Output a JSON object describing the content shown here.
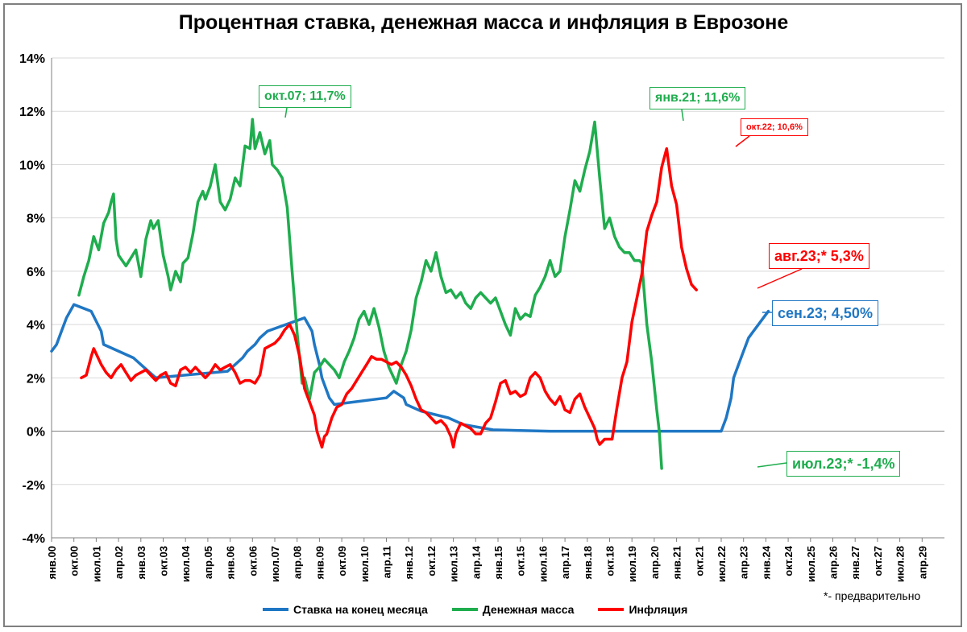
{
  "title": "Процентная ставка, денежная масса и инфляция в Еврозоне",
  "note": "*- предварительно",
  "colors": {
    "rate": "#1f77c4",
    "money": "#1fad4e",
    "inflation": "#ff0000",
    "grid": "#d9d9d9",
    "axis": "#808080"
  },
  "chart_data": {
    "type": "line",
    "ylim": [
      -4,
      14
    ],
    "yticks": [
      -4,
      -2,
      0,
      2,
      4,
      6,
      8,
      10,
      12,
      14
    ],
    "ytick_labels": [
      "-4%",
      "-2%",
      "0%",
      "2%",
      "4%",
      "6%",
      "8%",
      "10%",
      "12%",
      "14%"
    ],
    "x_labels": [
      "янв.00",
      "окт.00",
      "июл.01",
      "апр.02",
      "янв.03",
      "окт.03",
      "июл.04",
      "апр.05",
      "янв.06",
      "окт.06",
      "июл.07",
      "апр.08",
      "янв.09",
      "окт.09",
      "июл.10",
      "апр.11",
      "янв.12",
      "окт.12",
      "июл.13",
      "апр.14",
      "янв.15",
      "окт.15",
      "июл.16",
      "апр.17",
      "янв.18",
      "окт.18",
      "июл.19",
      "апр.20",
      "янв.21",
      "окт.21",
      "июл.22",
      "апр.23",
      "янв.24",
      "окт.24",
      "июл.25",
      "апр.26",
      "янв.27",
      "окт.27",
      "июл.28",
      "апр.29"
    ],
    "x_label_step_months": 9,
    "series": [
      {
        "name": "Ставка на конец месяца",
        "key": "rate",
        "points": [
          [
            0,
            3.0
          ],
          [
            2,
            3.25
          ],
          [
            4,
            3.75
          ],
          [
            6,
            4.25
          ],
          [
            9,
            4.75
          ],
          [
            16,
            4.5
          ],
          [
            20,
            3.75
          ],
          [
            21,
            3.25
          ],
          [
            33,
            2.75
          ],
          [
            36,
            2.5
          ],
          [
            42,
            2.0
          ],
          [
            71,
            2.25
          ],
          [
            74,
            2.5
          ],
          [
            77,
            2.75
          ],
          [
            79,
            3.0
          ],
          [
            82,
            3.25
          ],
          [
            84,
            3.5
          ],
          [
            87,
            3.75
          ],
          [
            102,
            4.25
          ],
          [
            105,
            3.75
          ],
          [
            106,
            3.25
          ],
          [
            108,
            2.5
          ],
          [
            109,
            2.0
          ],
          [
            111,
            1.5
          ],
          [
            112,
            1.25
          ],
          [
            114,
            1.0
          ],
          [
            135,
            1.25
          ],
          [
            138,
            1.5
          ],
          [
            142,
            1.25
          ],
          [
            143,
            1.0
          ],
          [
            149,
            0.75
          ],
          [
            160,
            0.5
          ],
          [
            166,
            0.25
          ],
          [
            178,
            0.05
          ],
          [
            201,
            0.0
          ],
          [
            270,
            0.0
          ],
          [
            272,
            0.5
          ],
          [
            274,
            1.25
          ],
          [
            275,
            2.0
          ],
          [
            277,
            2.5
          ],
          [
            279,
            3.0
          ],
          [
            281,
            3.5
          ],
          [
            283,
            3.75
          ],
          [
            285,
            4.0
          ],
          [
            287,
            4.25
          ],
          [
            289,
            4.5
          ]
        ]
      },
      {
        "name": "Денежная масса",
        "key": "money",
        "points": [
          [
            11,
            5.1
          ],
          [
            13,
            5.8
          ],
          [
            15,
            6.4
          ],
          [
            17,
            7.3
          ],
          [
            19,
            6.8
          ],
          [
            21,
            7.8
          ],
          [
            23,
            8.2
          ],
          [
            24,
            8.6
          ],
          [
            25,
            8.9
          ],
          [
            26,
            7.2
          ],
          [
            27,
            6.6
          ],
          [
            30,
            6.2
          ],
          [
            32,
            6.5
          ],
          [
            34,
            6.8
          ],
          [
            36,
            5.8
          ],
          [
            38,
            7.2
          ],
          [
            40,
            7.9
          ],
          [
            41,
            7.6
          ],
          [
            43,
            7.9
          ],
          [
            45,
            6.6
          ],
          [
            47,
            5.8
          ],
          [
            48,
            5.3
          ],
          [
            50,
            6.0
          ],
          [
            52,
            5.6
          ],
          [
            53,
            6.3
          ],
          [
            55,
            6.5
          ],
          [
            57,
            7.4
          ],
          [
            59,
            8.6
          ],
          [
            61,
            9.0
          ],
          [
            62,
            8.7
          ],
          [
            64,
            9.2
          ],
          [
            66,
            10.0
          ],
          [
            68,
            8.6
          ],
          [
            70,
            8.3
          ],
          [
            72,
            8.7
          ],
          [
            74,
            9.5
          ],
          [
            76,
            9.2
          ],
          [
            78,
            10.7
          ],
          [
            80,
            10.6
          ],
          [
            81,
            11.7
          ],
          [
            82,
            10.6
          ],
          [
            84,
            11.2
          ],
          [
            86,
            10.4
          ],
          [
            88,
            10.9
          ],
          [
            89,
            10.0
          ],
          [
            91,
            9.8
          ],
          [
            93,
            9.5
          ],
          [
            95,
            8.4
          ],
          [
            97,
            6.0
          ],
          [
            99,
            3.7
          ],
          [
            101,
            1.8
          ],
          [
            102,
            2.0
          ],
          [
            104,
            1.2
          ],
          [
            106,
            2.2
          ],
          [
            108,
            2.4
          ],
          [
            110,
            2.7
          ],
          [
            112,
            2.5
          ],
          [
            114,
            2.3
          ],
          [
            116,
            2.0
          ],
          [
            118,
            2.6
          ],
          [
            120,
            3.0
          ],
          [
            122,
            3.5
          ],
          [
            124,
            4.2
          ],
          [
            126,
            4.5
          ],
          [
            128,
            4.0
          ],
          [
            130,
            4.6
          ],
          [
            132,
            3.9
          ],
          [
            134,
            3.0
          ],
          [
            136,
            2.4
          ],
          [
            138,
            2.0
          ],
          [
            139,
            1.8
          ],
          [
            141,
            2.5
          ],
          [
            143,
            3.0
          ],
          [
            145,
            3.8
          ],
          [
            147,
            5.0
          ],
          [
            149,
            5.6
          ],
          [
            151,
            6.4
          ],
          [
            153,
            6.0
          ],
          [
            155,
            6.7
          ],
          [
            157,
            5.8
          ],
          [
            159,
            5.2
          ],
          [
            161,
            5.3
          ],
          [
            163,
            5.0
          ],
          [
            165,
            5.2
          ],
          [
            167,
            4.8
          ],
          [
            169,
            4.6
          ],
          [
            171,
            5.0
          ],
          [
            173,
            5.2
          ],
          [
            175,
            5.0
          ],
          [
            177,
            4.8
          ],
          [
            179,
            5.0
          ],
          [
            181,
            4.5
          ],
          [
            183,
            4.0
          ],
          [
            185,
            3.6
          ],
          [
            187,
            4.6
          ],
          [
            189,
            4.2
          ],
          [
            191,
            4.4
          ],
          [
            193,
            4.3
          ],
          [
            195,
            5.1
          ],
          [
            197,
            5.4
          ],
          [
            199,
            5.8
          ],
          [
            201,
            6.4
          ],
          [
            203,
            5.8
          ],
          [
            205,
            6.0
          ],
          [
            207,
            7.3
          ],
          [
            209,
            8.3
          ],
          [
            211,
            9.4
          ],
          [
            213,
            9.0
          ],
          [
            215,
            9.8
          ],
          [
            217,
            10.5
          ],
          [
            219,
            11.6
          ],
          [
            221,
            9.5
          ],
          [
            223,
            7.6
          ],
          [
            225,
            8.0
          ],
          [
            227,
            7.3
          ],
          [
            229,
            6.9
          ],
          [
            231,
            6.7
          ],
          [
            233,
            6.7
          ],
          [
            235,
            6.4
          ],
          [
            237,
            6.4
          ],
          [
            238,
            6.3
          ],
          [
            240,
            4.0
          ],
          [
            242,
            2.6
          ],
          [
            244,
            0.8
          ],
          [
            245,
            0.0
          ],
          [
            246,
            -1.4
          ]
        ]
      },
      {
        "name": "Инфляция",
        "key": "inflation",
        "points": [
          [
            12,
            2.0
          ],
          [
            14,
            2.1
          ],
          [
            16,
            2.8
          ],
          [
            17,
            3.1
          ],
          [
            18,
            2.9
          ],
          [
            20,
            2.5
          ],
          [
            22,
            2.2
          ],
          [
            24,
            2.0
          ],
          [
            26,
            2.3
          ],
          [
            28,
            2.5
          ],
          [
            30,
            2.2
          ],
          [
            32,
            1.9
          ],
          [
            34,
            2.1
          ],
          [
            36,
            2.2
          ],
          [
            38,
            2.3
          ],
          [
            40,
            2.1
          ],
          [
            42,
            1.9
          ],
          [
            44,
            2.1
          ],
          [
            46,
            2.2
          ],
          [
            48,
            1.8
          ],
          [
            50,
            1.7
          ],
          [
            52,
            2.3
          ],
          [
            54,
            2.4
          ],
          [
            56,
            2.2
          ],
          [
            58,
            2.4
          ],
          [
            60,
            2.2
          ],
          [
            62,
            2.0
          ],
          [
            64,
            2.2
          ],
          [
            66,
            2.5
          ],
          [
            68,
            2.3
          ],
          [
            70,
            2.4
          ],
          [
            72,
            2.5
          ],
          [
            74,
            2.2
          ],
          [
            76,
            1.8
          ],
          [
            78,
            1.9
          ],
          [
            80,
            1.9
          ],
          [
            82,
            1.8
          ],
          [
            84,
            2.1
          ],
          [
            86,
            3.1
          ],
          [
            88,
            3.2
          ],
          [
            90,
            3.3
          ],
          [
            92,
            3.5
          ],
          [
            94,
            3.8
          ],
          [
            96,
            4.0
          ],
          [
            98,
            3.6
          ],
          [
            100,
            2.8
          ],
          [
            102,
            1.6
          ],
          [
            104,
            1.1
          ],
          [
            106,
            0.6
          ],
          [
            107,
            0.0
          ],
          [
            108,
            -0.3
          ],
          [
            109,
            -0.6
          ],
          [
            110,
            -0.2
          ],
          [
            111,
            -0.1
          ],
          [
            113,
            0.5
          ],
          [
            115,
            0.9
          ],
          [
            117,
            1.0
          ],
          [
            119,
            1.4
          ],
          [
            121,
            1.6
          ],
          [
            123,
            1.9
          ],
          [
            125,
            2.2
          ],
          [
            127,
            2.5
          ],
          [
            129,
            2.8
          ],
          [
            131,
            2.7
          ],
          [
            133,
            2.7
          ],
          [
            135,
            2.6
          ],
          [
            137,
            2.5
          ],
          [
            139,
            2.6
          ],
          [
            141,
            2.4
          ],
          [
            143,
            2.1
          ],
          [
            145,
            1.7
          ],
          [
            147,
            1.2
          ],
          [
            149,
            0.8
          ],
          [
            151,
            0.7
          ],
          [
            153,
            0.5
          ],
          [
            155,
            0.3
          ],
          [
            157,
            0.4
          ],
          [
            159,
            0.2
          ],
          [
            161,
            -0.2
          ],
          [
            162,
            -0.6
          ],
          [
            163,
            -0.1
          ],
          [
            165,
            0.3
          ],
          [
            167,
            0.2
          ],
          [
            169,
            0.1
          ],
          [
            171,
            -0.1
          ],
          [
            173,
            -0.1
          ],
          [
            175,
            0.3
          ],
          [
            177,
            0.5
          ],
          [
            179,
            1.1
          ],
          [
            181,
            1.8
          ],
          [
            183,
            1.9
          ],
          [
            185,
            1.4
          ],
          [
            187,
            1.5
          ],
          [
            189,
            1.3
          ],
          [
            191,
            1.4
          ],
          [
            193,
            2.0
          ],
          [
            195,
            2.2
          ],
          [
            197,
            2.0
          ],
          [
            199,
            1.5
          ],
          [
            201,
            1.2
          ],
          [
            203,
            1.0
          ],
          [
            205,
            1.3
          ],
          [
            207,
            0.8
          ],
          [
            209,
            0.7
          ],
          [
            211,
            1.2
          ],
          [
            213,
            1.4
          ],
          [
            215,
            0.9
          ],
          [
            217,
            0.5
          ],
          [
            218,
            0.3
          ],
          [
            219,
            0.1
          ],
          [
            220,
            -0.3
          ],
          [
            221,
            -0.5
          ],
          [
            223,
            -0.3
          ],
          [
            226,
            -0.3
          ],
          [
            228,
            0.9
          ],
          [
            230,
            2.0
          ],
          [
            232,
            2.6
          ],
          [
            234,
            4.1
          ],
          [
            236,
            5.0
          ],
          [
            238,
            5.9
          ],
          [
            240,
            7.5
          ],
          [
            242,
            8.1
          ],
          [
            244,
            8.6
          ],
          [
            246,
            9.9
          ],
          [
            248,
            10.6
          ],
          [
            250,
            9.2
          ],
          [
            252,
            8.5
          ],
          [
            254,
            6.9
          ],
          [
            256,
            6.1
          ],
          [
            258,
            5.5
          ],
          [
            260,
            5.3
          ]
        ]
      }
    ],
    "callouts": [
      {
        "series": "money",
        "text": "окт.07; 11,7%"
      },
      {
        "series": "money",
        "text": "янв.21; 11,6%"
      },
      {
        "series": "inflation",
        "text": "окт.22; 10,6%"
      },
      {
        "series": "inflation",
        "text": "авг.23;* 5,3%"
      },
      {
        "series": "rate",
        "text": "сен.23; 4,50%"
      },
      {
        "series": "money",
        "text": "июл.23;* -1,4%"
      }
    ]
  }
}
